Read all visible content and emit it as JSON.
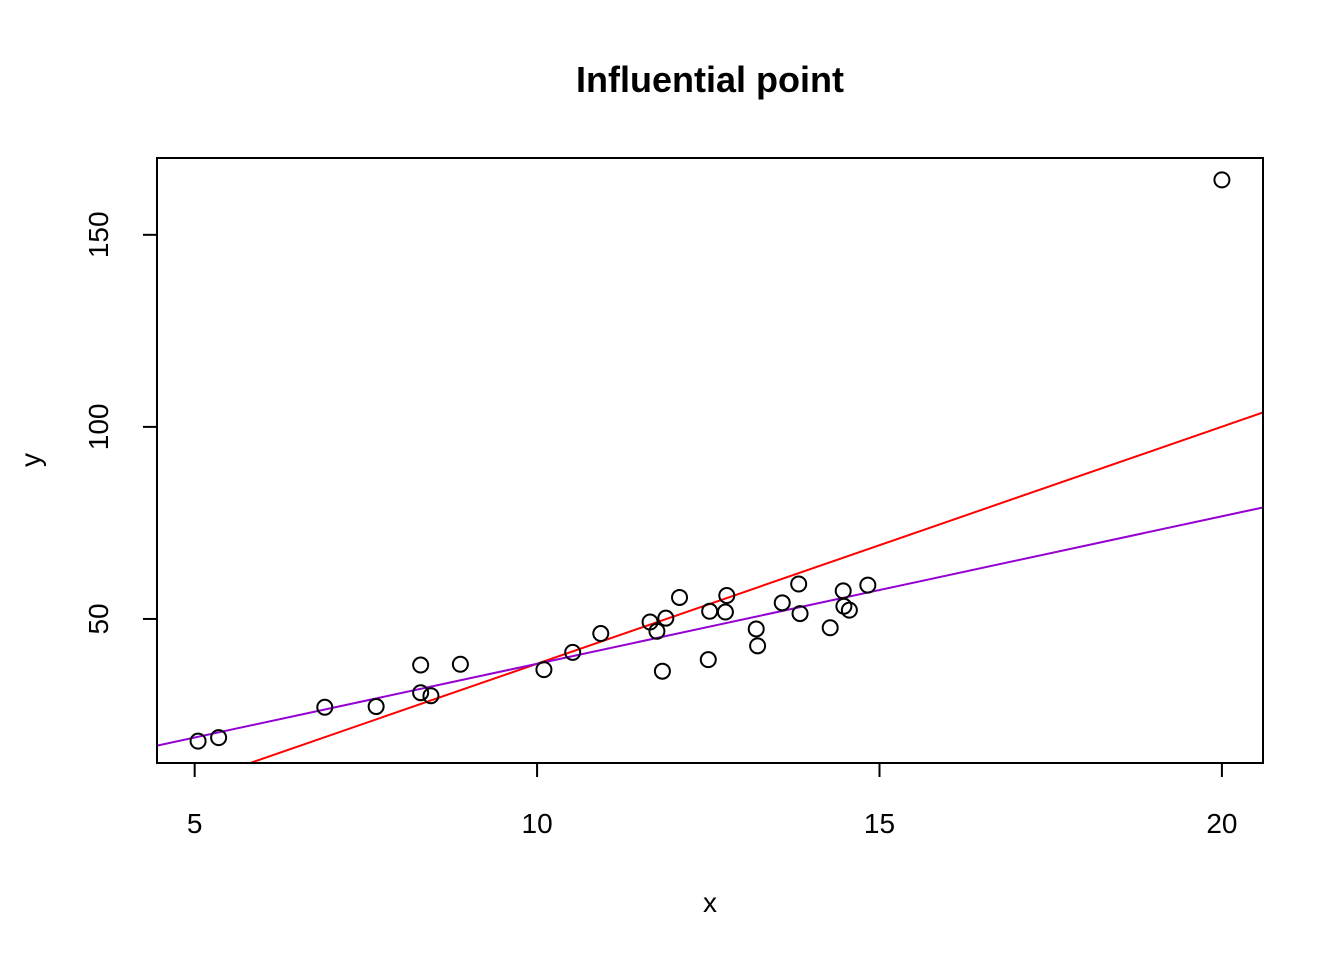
{
  "chart_data": {
    "type": "scatter",
    "title": "Influential point",
    "xlabel": "x",
    "ylabel": "y",
    "xlim": [
      4.45,
      20.6
    ],
    "ylim": [
      12.5,
      170
    ],
    "x_ticks": [
      5,
      10,
      15,
      20
    ],
    "y_ticks": [
      50,
      100,
      150
    ],
    "grid": false,
    "legend": "none",
    "points": [
      {
        "x": 5.05,
        "y": 18.2
      },
      {
        "x": 5.35,
        "y": 19.1
      },
      {
        "x": 6.9,
        "y": 27.0
      },
      {
        "x": 7.65,
        "y": 27.2
      },
      {
        "x": 8.3,
        "y": 30.8
      },
      {
        "x": 8.3,
        "y": 38.0
      },
      {
        "x": 8.45,
        "y": 30.0
      },
      {
        "x": 8.88,
        "y": 38.2
      },
      {
        "x": 10.1,
        "y": 36.8
      },
      {
        "x": 10.52,
        "y": 41.3
      },
      {
        "x": 10.93,
        "y": 46.2
      },
      {
        "x": 11.65,
        "y": 49.2
      },
      {
        "x": 11.75,
        "y": 46.8
      },
      {
        "x": 11.83,
        "y": 36.4
      },
      {
        "x": 11.88,
        "y": 50.2
      },
      {
        "x": 12.08,
        "y": 55.6
      },
      {
        "x": 12.5,
        "y": 39.4
      },
      {
        "x": 12.52,
        "y": 52.0
      },
      {
        "x": 12.75,
        "y": 51.8
      },
      {
        "x": 12.77,
        "y": 56.1
      },
      {
        "x": 13.2,
        "y": 47.4
      },
      {
        "x": 13.22,
        "y": 43.0
      },
      {
        "x": 13.58,
        "y": 54.2
      },
      {
        "x": 13.82,
        "y": 59.1
      },
      {
        "x": 13.84,
        "y": 51.4
      },
      {
        "x": 14.28,
        "y": 47.7
      },
      {
        "x": 14.47,
        "y": 57.3
      },
      {
        "x": 14.48,
        "y": 53.3
      },
      {
        "x": 14.56,
        "y": 52.3
      },
      {
        "x": 14.83,
        "y": 58.8
      },
      {
        "x": 20.0,
        "y": 164.3
      }
    ],
    "lines": [
      {
        "color": "#ff0000",
        "intercept": -23.35,
        "slope": 6.17
      },
      {
        "color": "#9400d3",
        "intercept": -0.07,
        "slope": 3.84
      }
    ],
    "colors": {
      "points": "#000000",
      "axes": "#000000"
    }
  }
}
